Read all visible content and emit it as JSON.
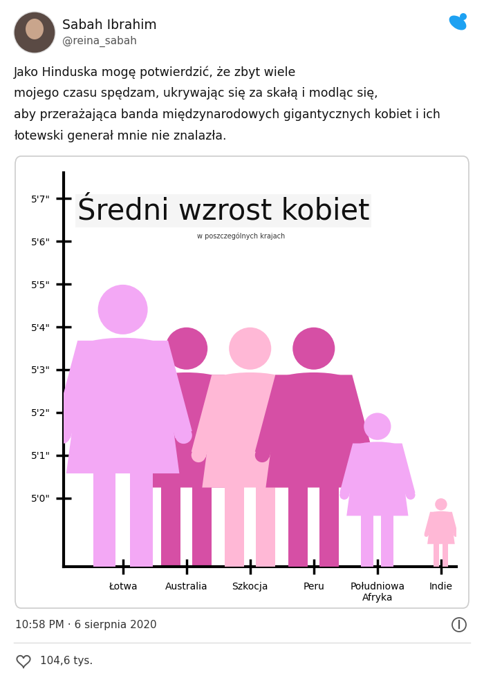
{
  "tweet": {
    "author": "Sabah Ibrahim",
    "handle": "@reina_sabah",
    "text_lines": [
      "Jako Hinduska mogę potwierdzić, że zbyt wiele",
      "mojego czasu spędzam, ukrywając się za skałą i modląc się,",
      "aby przerażająca banda międzynarodowych gigantycznych kobiet i ich",
      "łotewski generał mnie nie znalazła."
    ],
    "timestamp": "10:58 PM · 6 sierpnia 2020",
    "likes": "104,6 tys."
  },
  "chart_data": {
    "type": "pictogram",
    "title": "Średni wzrost kobiet",
    "subtitle": "w poszczególnych krajach",
    "categories": [
      "Łotwa",
      "Australia",
      "Szkocja",
      "Peru",
      "Południowa\nAfryka",
      "Indie"
    ],
    "values": [
      65,
      64,
      64,
      64,
      62,
      60
    ],
    "colors": [
      "#f3a8f5",
      "#d64fa5",
      "#ffb8d6",
      "#d64fa5",
      "#f3a8f5",
      "#ffb8d6"
    ],
    "ylim": [
      58.4,
      67.6
    ],
    "yticks": [
      {
        "value": 60,
        "label": "5'0\""
      },
      {
        "value": 61,
        "label": "5'1\""
      },
      {
        "value": 62,
        "label": "5'2\""
      },
      {
        "value": 63,
        "label": "5'3\""
      },
      {
        "value": 64,
        "label": "5'4\""
      },
      {
        "value": 65,
        "label": "5'5\""
      },
      {
        "value": 66,
        "label": "5'6\""
      },
      {
        "value": 67,
        "label": "5'7\""
      }
    ]
  }
}
